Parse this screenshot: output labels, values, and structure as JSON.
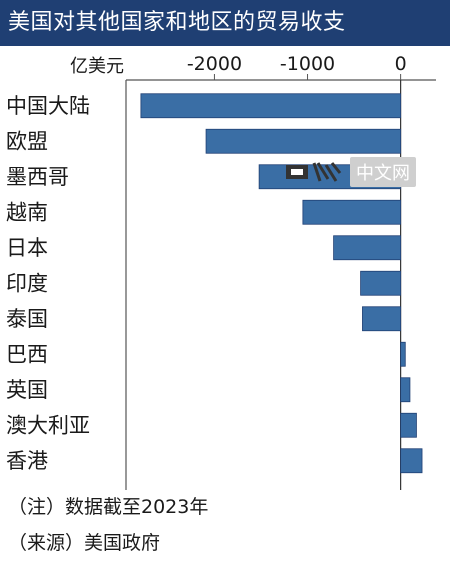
{
  "header": {
    "title": "美国对其他国家和地区的贸易收支"
  },
  "chart_data": {
    "type": "bar",
    "orientation": "horizontal",
    "unit_label": "亿美元",
    "categories": [
      "中国大陆",
      "欧盟",
      "墨西哥",
      "越南",
      "日本",
      "印度",
      "泰国",
      "巴西",
      "英国",
      "澳大利亚",
      "香港"
    ],
    "values": [
      -2790,
      -2090,
      -1520,
      -1050,
      -720,
      -430,
      -410,
      50,
      100,
      170,
      230
    ],
    "x_ticks": [
      -2000,
      -1000,
      0
    ],
    "x_tick_labels": [
      "-2000",
      "-1000",
      "0"
    ],
    "xlim": [
      -2950,
      380
    ],
    "bar_color": "#3a6ea5",
    "grid": false
  },
  "footnotes": {
    "note": "（注）数据截至2023年",
    "source": "（来源）美国政府"
  },
  "watermark": {
    "text": "中文网",
    "logo": "日经"
  }
}
